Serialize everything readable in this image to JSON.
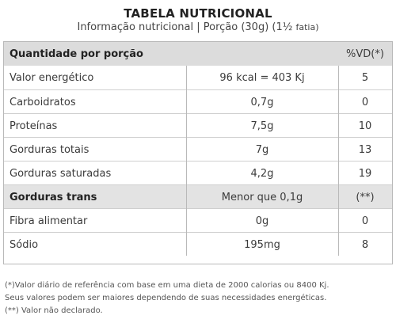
{
  "title": "TABELA NUTRICIONAL",
  "subtitle": {
    "main": "Informação nutricional | Porção (30g) (1½",
    "small": "fatia)"
  },
  "table": {
    "header": {
      "label": "Quantidade por porção",
      "vd": "%VD(*)"
    },
    "rows": [
      {
        "name": "Valor energético",
        "amount": "96 kcal = 403 Kj",
        "vd": "5"
      },
      {
        "name": "Carboidratos",
        "amount": "0,7g",
        "vd": "0"
      },
      {
        "name": "Proteínas",
        "amount": "7,5g",
        "vd": "10"
      },
      {
        "name": "Gorduras totais",
        "amount": "7g",
        "vd": "13"
      },
      {
        "name": "Gorduras saturadas",
        "amount": "4,2g",
        "vd": "19"
      },
      {
        "name": "Gorduras trans",
        "amount": "Menor que 0,1g",
        "vd": "(**)"
      },
      {
        "name": "Fibra alimentar",
        "amount": "0g",
        "vd": "0"
      },
      {
        "name": "Sódio",
        "amount": "195mg",
        "vd": "8"
      }
    ]
  },
  "footnotes": [
    "(*)Valor diário de referência com base em uma dieta de 2000 calorias ou 8400 Kj.",
    "Seus valores podem ser maiores dependendo de suas necessidades energéticas.",
    "(**) Valor não declarado."
  ],
  "colors": {
    "header_bg": "#dcdcdc",
    "border": "#b9b9b9",
    "shaded_row": "#e3e3e3"
  }
}
